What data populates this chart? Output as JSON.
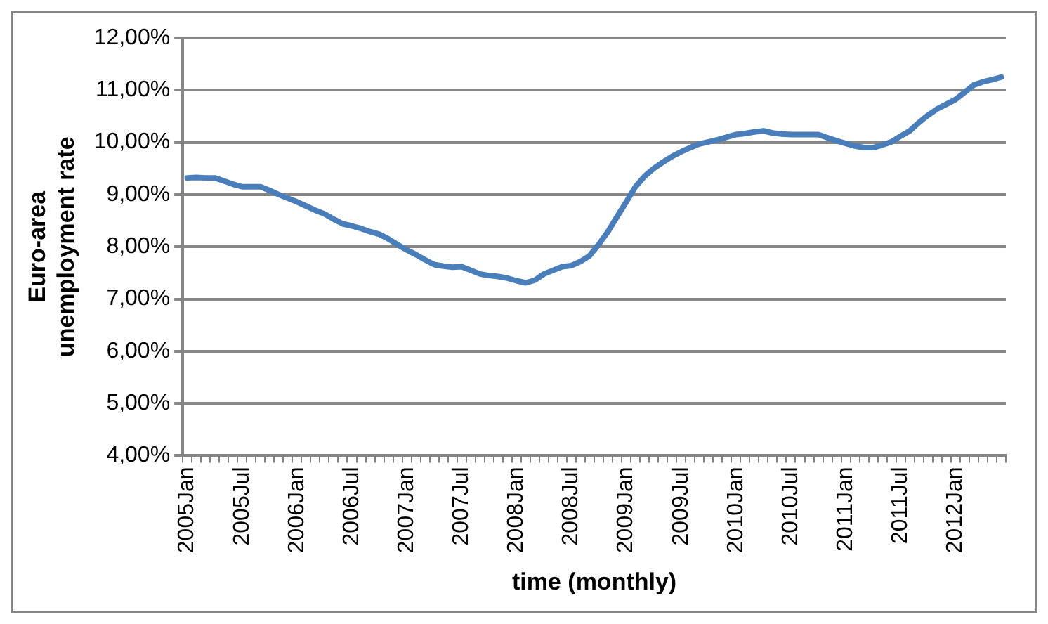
{
  "chart_data": {
    "type": "line",
    "xlabel": "time (monthly)",
    "ylabel": "Euro-area unemployment rate",
    "categories": [
      "2005Jan",
      null,
      null,
      null,
      null,
      null,
      "2005Jul",
      null,
      null,
      null,
      null,
      null,
      "2006Jan",
      null,
      null,
      null,
      null,
      null,
      "2006Jul",
      null,
      null,
      null,
      null,
      null,
      "2007Jan",
      null,
      null,
      null,
      null,
      null,
      "2007Jul",
      null,
      null,
      null,
      null,
      null,
      "2008Jan",
      null,
      null,
      null,
      null,
      null,
      "2008Jul",
      null,
      null,
      null,
      null,
      null,
      "2009Jan",
      null,
      null,
      null,
      null,
      null,
      "2009Jul",
      null,
      null,
      null,
      null,
      null,
      "2010Jan",
      null,
      null,
      null,
      null,
      null,
      "2010Jul",
      null,
      null,
      null,
      null,
      null,
      "2011Jan",
      null,
      null,
      null,
      null,
      null,
      "2011Jul",
      null,
      null,
      null,
      null,
      null,
      "2012Jan",
      null,
      null,
      null,
      null,
      null
    ],
    "series": [
      {
        "color": "#4a7ebb",
        "values": [
          9.32,
          9.33,
          9.32,
          9.32,
          9.26,
          9.2,
          9.15,
          9.15,
          9.15,
          9.08,
          9.0,
          8.93,
          8.86,
          8.78,
          8.7,
          8.63,
          8.53,
          8.44,
          8.4,
          8.35,
          8.29,
          8.24,
          8.15,
          8.04,
          7.94,
          7.85,
          7.75,
          7.66,
          7.63,
          7.61,
          7.62,
          7.55,
          7.48,
          7.45,
          7.43,
          7.4,
          7.35,
          7.31,
          7.36,
          7.48,
          7.55,
          7.62,
          7.64,
          7.72,
          7.83,
          8.05,
          8.29,
          8.58,
          8.86,
          9.15,
          9.35,
          9.5,
          9.62,
          9.73,
          9.82,
          9.9,
          9.97,
          10.01,
          10.05,
          10.1,
          10.15,
          10.17,
          10.2,
          10.22,
          10.18,
          10.16,
          10.15,
          10.15,
          10.15,
          10.15,
          10.09,
          10.03,
          9.98,
          9.93,
          9.9,
          9.9,
          9.95,
          10.01,
          10.12,
          10.22,
          10.38,
          10.52,
          10.64,
          10.73,
          10.82,
          10.96,
          11.1,
          11.16,
          11.2,
          11.25
        ]
      }
    ],
    "ylim": [
      4,
      12
    ],
    "yticks": [
      {
        "value": 4,
        "label": "4,00%"
      },
      {
        "value": 5,
        "label": "5,00%"
      },
      {
        "value": 6,
        "label": "6,00%"
      },
      {
        "value": 7,
        "label": "7,00%"
      },
      {
        "value": 8,
        "label": "8,00%"
      },
      {
        "value": 9,
        "label": "9,00%"
      },
      {
        "value": 10,
        "label": "10,00%"
      },
      {
        "value": 11,
        "label": "11,00%"
      },
      {
        "value": 12,
        "label": "12,00%"
      }
    ],
    "grid": "y",
    "legend": false,
    "marker": "none",
    "line_style": "solid"
  }
}
